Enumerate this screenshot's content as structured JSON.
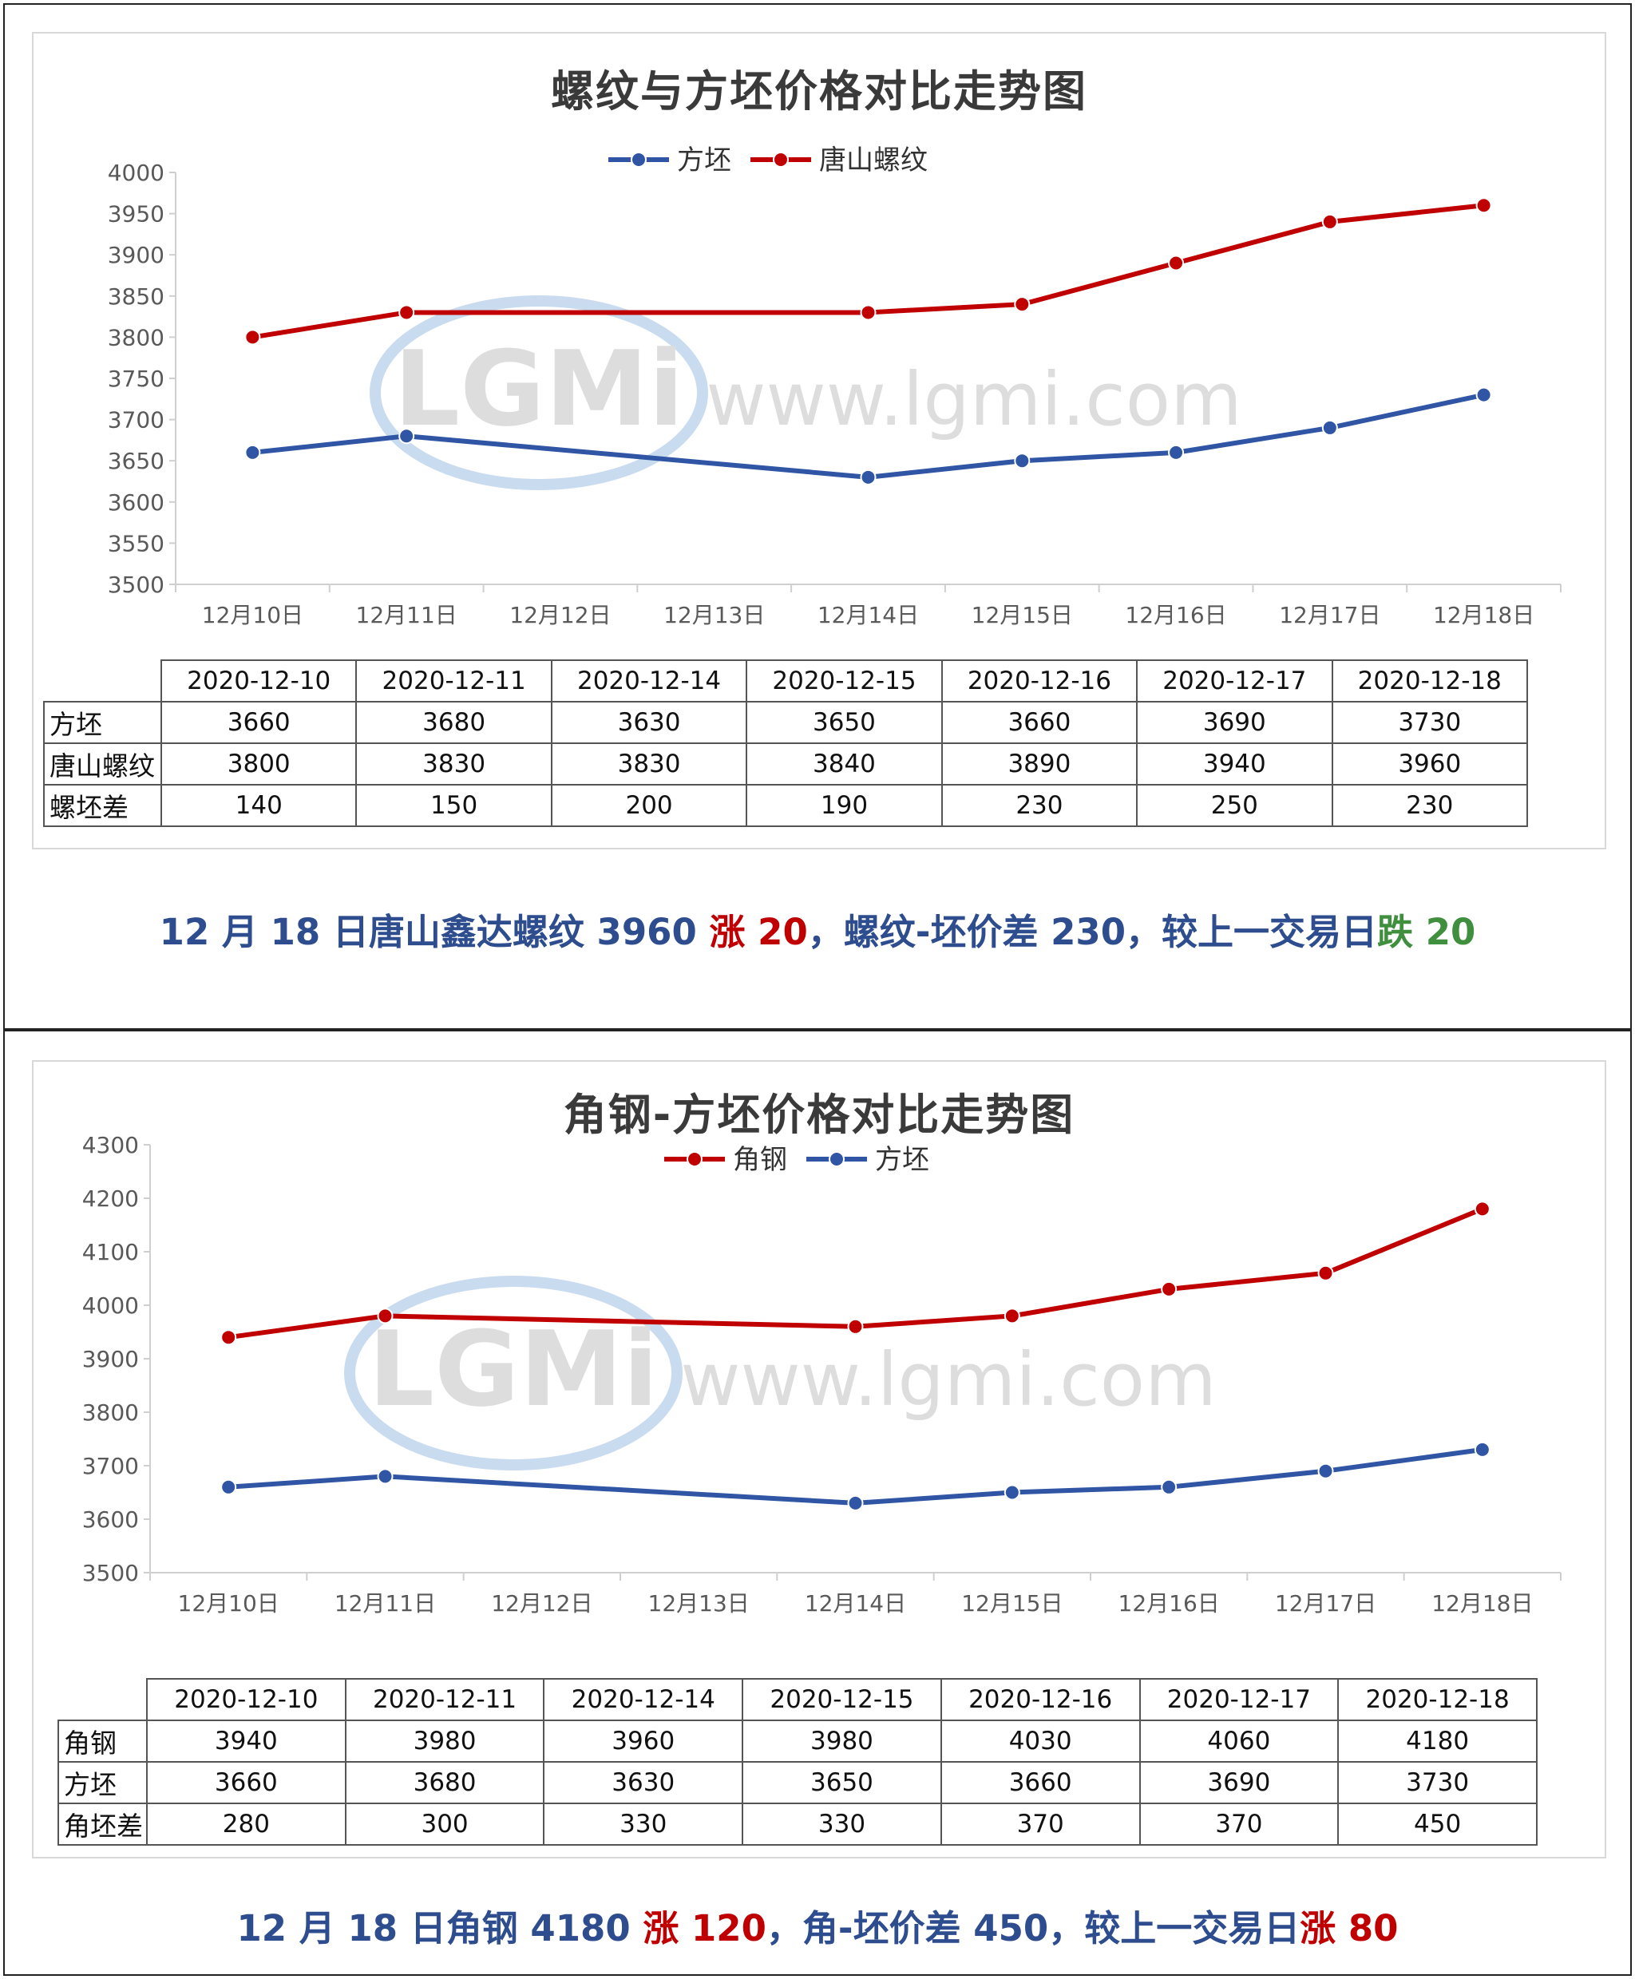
{
  "chart_data": [
    {
      "type": "line",
      "title": "螺纹与方坯价格对比走势图",
      "categories": [
        "12月10日",
        "12月11日",
        "12月12日",
        "12月13日",
        "12月14日",
        "12月15日",
        "12月16日",
        "12月17日",
        "12月18日"
      ],
      "y_ticks": [
        "4000",
        "3950",
        "3900",
        "3850",
        "3800",
        "3750",
        "3700",
        "3650",
        "3600",
        "3550",
        "3500"
      ],
      "ylim": [
        3500,
        4000
      ],
      "legend_position": "top",
      "series": [
        {
          "name": "方坯",
          "color": "#2f55a4",
          "values": [
            3660,
            3680,
            null,
            null,
            3630,
            3650,
            3660,
            3690,
            3730
          ]
        },
        {
          "name": "唐山螺纹",
          "color": "#c00000",
          "values": [
            3800,
            3830,
            null,
            null,
            3830,
            3840,
            3890,
            3940,
            3960
          ]
        }
      ],
      "table": {
        "dates": [
          "2020-12-10",
          "2020-12-11",
          "2020-12-14",
          "2020-12-15",
          "2020-12-16",
          "2020-12-17",
          "2020-12-18"
        ],
        "rows": [
          {
            "label": "方坯",
            "values": [
              "3660",
              "3680",
              "3630",
              "3650",
              "3660",
              "3690",
              "3730"
            ]
          },
          {
            "label": "唐山螺纹",
            "values": [
              "3800",
              "3830",
              "3830",
              "3840",
              "3890",
              "3940",
              "3960"
            ]
          },
          {
            "label": "螺坯差",
            "values": [
              "140",
              "150",
              "200",
              "190",
              "230",
              "250",
              "230"
            ]
          }
        ]
      }
    },
    {
      "type": "line",
      "title": "角钢-方坯价格对比走势图",
      "categories": [
        "12月10日",
        "12月11日",
        "12月12日",
        "12月13日",
        "12月14日",
        "12月15日",
        "12月16日",
        "12月17日",
        "12月18日"
      ],
      "y_ticks": [
        "4300",
        "4200",
        "4100",
        "4000",
        "3900",
        "3800",
        "3700",
        "3600",
        "3500"
      ],
      "ylim": [
        3500,
        4300
      ],
      "legend_position": "top",
      "series": [
        {
          "name": "角钢",
          "color": "#c00000",
          "values": [
            3940,
            3980,
            null,
            null,
            3960,
            3980,
            4030,
            4060,
            4180
          ]
        },
        {
          "name": "方坯",
          "color": "#2f55a4",
          "values": [
            3660,
            3680,
            null,
            null,
            3630,
            3650,
            3660,
            3690,
            3730
          ]
        }
      ],
      "table": {
        "dates": [
          "2020-12-10",
          "2020-12-11",
          "2020-12-14",
          "2020-12-15",
          "2020-12-16",
          "2020-12-17",
          "2020-12-18"
        ],
        "rows": [
          {
            "label": "角钢",
            "values": [
              "3940",
              "3980",
              "3960",
              "3980",
              "4030",
              "4060",
              "4180"
            ]
          },
          {
            "label": "方坯",
            "values": [
              "3660",
              "3680",
              "3630",
              "3650",
              "3660",
              "3690",
              "3730"
            ]
          },
          {
            "label": "角坯差",
            "values": [
              "280",
              "300",
              "330",
              "330",
              "370",
              "370",
              "450"
            ]
          }
        ]
      }
    }
  ],
  "watermark": {
    "logo_text": "LGMi",
    "url_text": "www.lgmi.com"
  },
  "summary1": {
    "part1": "12 月 18 日唐山鑫达螺纹 3960 ",
    "part2": "涨 20",
    "part3": "，螺纹-坯价差 230，较上一交易日",
    "part4": "跌 20"
  },
  "summary2": {
    "part1": "12 月 18 日角钢 4180 ",
    "part2": "涨 120",
    "part3": "，角-坯价差 450，较上一交易日",
    "part4": "涨 80"
  },
  "colors": {
    "red_series": "#c00000",
    "blue_series": "#2f55a4",
    "summary_text": "#2e4d8f",
    "rise": "#c00000",
    "fall": "#3f8f3f"
  }
}
